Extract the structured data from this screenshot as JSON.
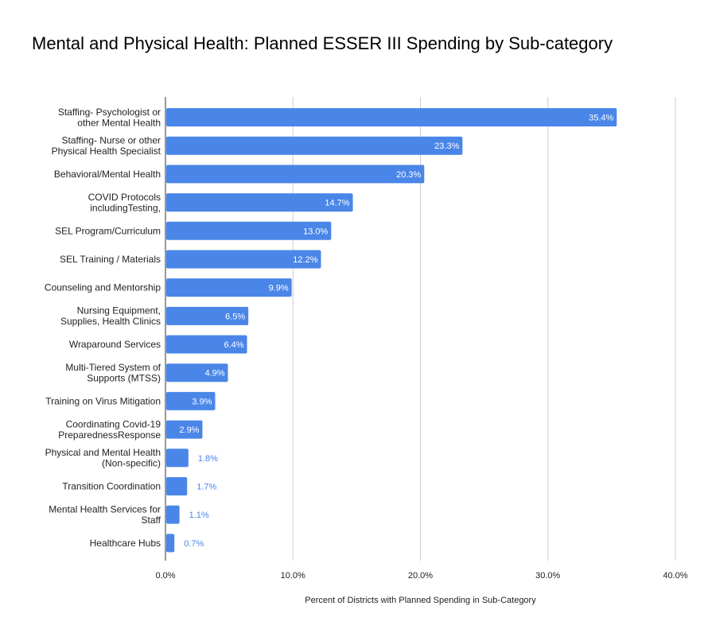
{
  "chart_data": {
    "type": "bar",
    "orientation": "horizontal",
    "title": "Mental and Physical Health:  Planned ESSER III Spending by Sub-category",
    "xlabel": "Percent of Districts with Planned Spending in Sub-Category",
    "ylabel": "",
    "xlim": [
      0,
      40
    ],
    "x_ticks": [
      "0.0%",
      "10.0%",
      "20.0%",
      "30.0%",
      "40.0%"
    ],
    "grid": true,
    "bar_color": "#4a86e8",
    "categories": [
      [
        "Staffing- Psychologist or",
        "other Mental Health"
      ],
      [
        "Staffing- Nurse or other",
        "Physical Health Specialist"
      ],
      [
        "Behavioral/Mental Health"
      ],
      [
        "COVID Protocols",
        "includingTesting,"
      ],
      [
        "SEL Program/Curriculum"
      ],
      [
        "SEL Training / Materials"
      ],
      [
        "Counseling and Mentorship"
      ],
      [
        "Nursing Equipment,",
        "Supplies, Health Clinics"
      ],
      [
        "Wraparound Services"
      ],
      [
        "Multi-Tiered System of",
        "Supports (MTSS)"
      ],
      [
        "Training on Virus Mitigation"
      ],
      [
        "Coordinating Covid-19",
        "PreparednessResponse"
      ],
      [
        "Physical and Mental Health",
        "(Non-specific)"
      ],
      [
        "Transition Coordination"
      ],
      [
        "Mental Health Services for",
        "Staff"
      ],
      [
        "Healthcare Hubs"
      ]
    ],
    "values": [
      35.4,
      23.3,
      20.3,
      14.7,
      13.0,
      12.2,
      9.9,
      6.5,
      6.4,
      4.9,
      3.9,
      2.9,
      1.8,
      1.7,
      1.1,
      0.7
    ],
    "data_labels": [
      "35.4%",
      "23.3%",
      "20.3%",
      "14.7%",
      "13.0%",
      "12.2%",
      "9.9%",
      "6.5%",
      "6.4%",
      "4.9%",
      "3.9%",
      "2.9%",
      "1.8%",
      "1.7%",
      "1.1%",
      "0.7%"
    ]
  }
}
